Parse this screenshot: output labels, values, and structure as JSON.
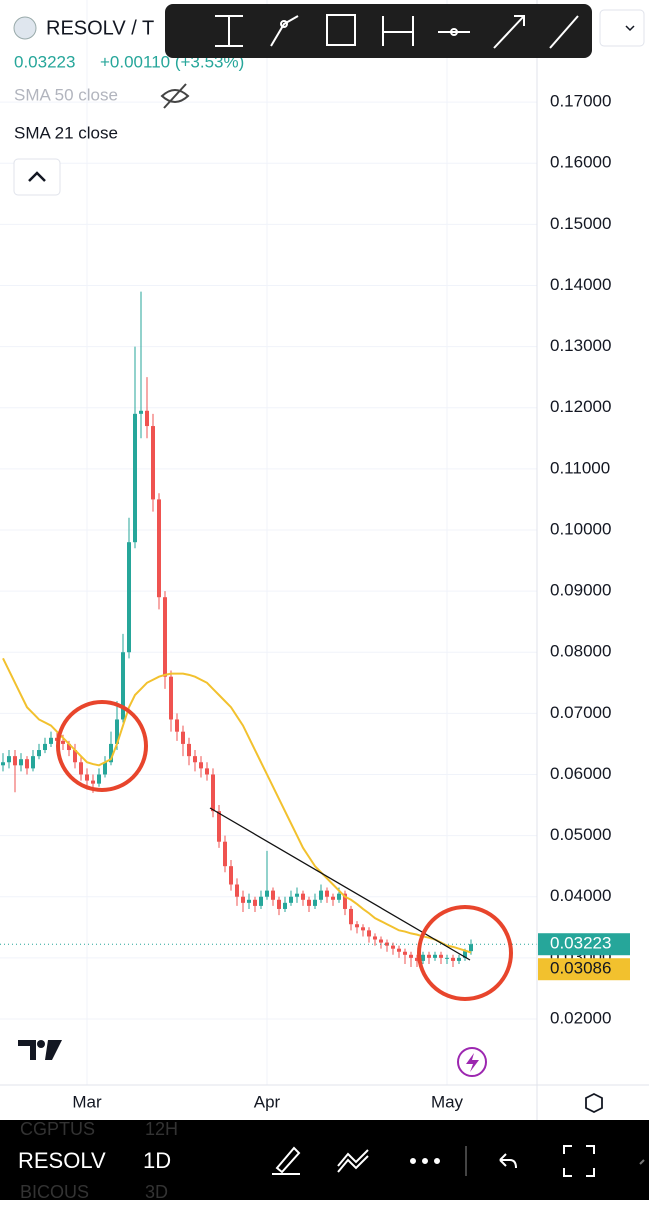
{
  "header": {
    "symbol": "RESOLV / T",
    "change": "+0.00110 (+3.53%)"
  },
  "bottom_bar": {
    "symbol": "RESOLV",
    "interval": "1D",
    "prev_symbol": "CGPTUS",
    "prev_interval": "12H",
    "next_symbol": "BICOUS",
    "next_interval": "3D"
  },
  "chart_data": {
    "type": "candlestick",
    "hidden_indicator": "SMA 50 close",
    "categories": [
      null,
      null,
      null,
      null,
      null,
      null,
      null,
      null,
      null,
      null,
      null,
      null,
      null,
      null,
      "Mar",
      null,
      null,
      null,
      null,
      null,
      null,
      null,
      null,
      null,
      null,
      null,
      null,
      null,
      null,
      null,
      null,
      null,
      null,
      null,
      null,
      null,
      null,
      null,
      null,
      null,
      null,
      null,
      null,
      null,
      "Apr",
      null,
      null,
      null,
      null,
      null,
      null,
      null,
      null,
      null,
      null,
      null,
      null,
      null,
      null,
      null,
      null,
      null,
      null,
      null,
      null,
      null,
      null,
      null,
      null,
      null,
      null,
      null,
      null,
      null,
      "May",
      null,
      null,
      null,
      null
    ],
    "open": [
      0.0615,
      0.062,
      0.063,
      0.0615,
      0.0625,
      0.061,
      0.063,
      0.064,
      0.065,
      0.066,
      0.0655,
      0.065,
      0.064,
      0.062,
      0.06,
      0.059,
      0.0585,
      0.06,
      0.062,
      0.065,
      0.069,
      0.08,
      0.098,
      0.119,
      0.1195,
      0.117,
      0.105,
      0.089,
      0.076,
      0.069,
      0.067,
      0.065,
      0.063,
      0.062,
      0.061,
      0.06,
      0.054,
      0.049,
      0.045,
      0.042,
      0.04,
      0.039,
      0.0395,
      0.0385,
      0.04,
      0.041,
      0.0395,
      0.038,
      0.039,
      0.04,
      0.0405,
      0.0395,
      0.0385,
      0.0395,
      0.041,
      0.04,
      0.0395,
      0.0405,
      0.038,
      0.0355,
      0.035,
      0.0345,
      0.0335,
      0.033,
      0.0325,
      0.032,
      0.0315,
      0.031,
      0.0305,
      0.03,
      0.0295,
      0.0305,
      0.03,
      0.0305,
      0.03,
      0.03,
      0.0295,
      0.03,
      0.0311
    ],
    "high": [
      0.0635,
      0.064,
      0.064,
      0.0635,
      0.063,
      0.064,
      0.065,
      0.066,
      0.067,
      0.067,
      0.0665,
      0.0655,
      0.065,
      0.063,
      0.061,
      0.06,
      0.061,
      0.063,
      0.067,
      0.072,
      0.083,
      0.102,
      0.13,
      0.139,
      0.125,
      0.119,
      0.106,
      0.09,
      0.077,
      0.07,
      0.068,
      0.066,
      0.064,
      0.063,
      0.062,
      0.061,
      0.055,
      0.05,
      0.046,
      0.043,
      0.041,
      0.0405,
      0.04,
      0.041,
      0.0475,
      0.0415,
      0.04,
      0.04,
      0.041,
      0.0415,
      0.041,
      0.04,
      0.0405,
      0.042,
      0.0415,
      0.0405,
      0.0415,
      0.041,
      0.0385,
      0.036,
      0.0355,
      0.035,
      0.034,
      0.0335,
      0.033,
      0.0325,
      0.032,
      0.0315,
      0.031,
      0.0305,
      0.031,
      0.031,
      0.031,
      0.031,
      0.0305,
      0.0305,
      0.0305,
      0.0315,
      0.033
    ],
    "low": [
      0.0605,
      0.061,
      0.0571,
      0.0605,
      0.06,
      0.0605,
      0.0625,
      0.0635,
      0.0645,
      0.0645,
      0.064,
      0.063,
      0.061,
      0.059,
      0.0575,
      0.057,
      0.058,
      0.0595,
      0.0615,
      0.064,
      0.0685,
      0.079,
      0.097,
      0.115,
      0.115,
      0.103,
      0.087,
      0.074,
      0.067,
      0.0655,
      0.063,
      0.0615,
      0.0605,
      0.0595,
      0.059,
      0.053,
      0.048,
      0.044,
      0.041,
      0.0385,
      0.0375,
      0.038,
      0.0375,
      0.038,
      0.0395,
      0.0385,
      0.037,
      0.0375,
      0.0385,
      0.039,
      0.0385,
      0.0375,
      0.038,
      0.039,
      0.039,
      0.0385,
      0.039,
      0.037,
      0.0345,
      0.034,
      0.0335,
      0.0325,
      0.032,
      0.0315,
      0.031,
      0.0305,
      0.03,
      0.029,
      0.0285,
      0.0285,
      0.029,
      0.029,
      0.0295,
      0.029,
      0.029,
      0.0285,
      0.029,
      0.0295,
      0.0305
    ],
    "close": [
      0.062,
      0.063,
      0.0615,
      0.0625,
      0.061,
      0.063,
      0.064,
      0.065,
      0.066,
      0.0655,
      0.065,
      0.064,
      0.062,
      0.06,
      0.059,
      0.0585,
      0.06,
      0.062,
      0.065,
      0.069,
      0.08,
      0.098,
      0.119,
      0.1195,
      0.117,
      0.105,
      0.089,
      0.076,
      0.069,
      0.067,
      0.065,
      0.063,
      0.062,
      0.061,
      0.06,
      0.054,
      0.049,
      0.045,
      0.042,
      0.04,
      0.039,
      0.0395,
      0.0385,
      0.04,
      0.041,
      0.0395,
      0.038,
      0.039,
      0.04,
      0.0405,
      0.0395,
      0.0385,
      0.0395,
      0.041,
      0.04,
      0.0395,
      0.0405,
      0.038,
      0.0355,
      0.035,
      0.0345,
      0.0335,
      0.033,
      0.0325,
      0.032,
      0.0315,
      0.031,
      0.0305,
      0.03,
      0.0295,
      0.0305,
      0.03,
      0.0305,
      0.03,
      0.03,
      0.0295,
      0.03,
      0.0311,
      0.03223
    ],
    "up_color": "#26a69a",
    "down_color": "#ef5350",
    "series": [
      {
        "name": "SMA 21 close",
        "color": "#f2c12e",
        "values": [
          0.079,
          0.077,
          0.075,
          0.073,
          0.071,
          0.07,
          0.069,
          0.0685,
          0.068,
          0.067,
          0.066,
          0.065,
          0.064,
          0.063,
          0.062,
          0.0617,
          0.0615,
          0.062,
          0.0625,
          0.065,
          0.068,
          0.071,
          0.073,
          0.074,
          0.075,
          0.0755,
          0.076,
          0.0763,
          0.0765,
          0.0765,
          0.0765,
          0.0763,
          0.076,
          0.0755,
          0.075,
          0.074,
          0.073,
          0.072,
          0.071,
          0.0695,
          0.068,
          0.066,
          0.064,
          0.062,
          0.06,
          0.058,
          0.056,
          0.054,
          0.052,
          0.05,
          0.048,
          0.0465,
          0.045,
          0.044,
          0.043,
          0.042,
          0.041,
          0.04,
          0.0395,
          0.0388,
          0.038,
          0.0373,
          0.0365,
          0.036,
          0.0355,
          0.035,
          0.0345,
          0.0343,
          0.034,
          0.0338,
          0.0335,
          0.0333,
          0.033,
          0.0325,
          0.032,
          0.0318,
          0.0315,
          0.0312,
          0.03086
        ]
      }
    ],
    "last_price": 0.03223,
    "sma_last": 0.03086,
    "ylim": [
      0.0092,
      0.1867
    ],
    "yticks": [
      {
        "value": 0.02,
        "label": "0.02000"
      },
      {
        "value": 0.03,
        "label": "0.03000"
      },
      {
        "value": 0.04,
        "label": "0.04000"
      },
      {
        "value": 0.05,
        "label": "0.05000"
      },
      {
        "value": 0.06,
        "label": "0.06000"
      },
      {
        "value": 0.07,
        "label": "0.07000"
      },
      {
        "value": 0.08,
        "label": "0.08000"
      },
      {
        "value": 0.09,
        "label": "0.09000"
      },
      {
        "value": 0.1,
        "label": "0.10000"
      },
      {
        "value": 0.11,
        "label": "0.11000"
      },
      {
        "value": 0.12,
        "label": "0.12000"
      },
      {
        "value": 0.13,
        "label": "0.13000"
      },
      {
        "value": 0.14,
        "label": "0.14000"
      },
      {
        "value": 0.15,
        "label": "0.15000"
      },
      {
        "value": 0.16,
        "label": "0.16000"
      },
      {
        "value": 0.17,
        "label": "0.17000"
      }
    ],
    "grid": true
  }
}
